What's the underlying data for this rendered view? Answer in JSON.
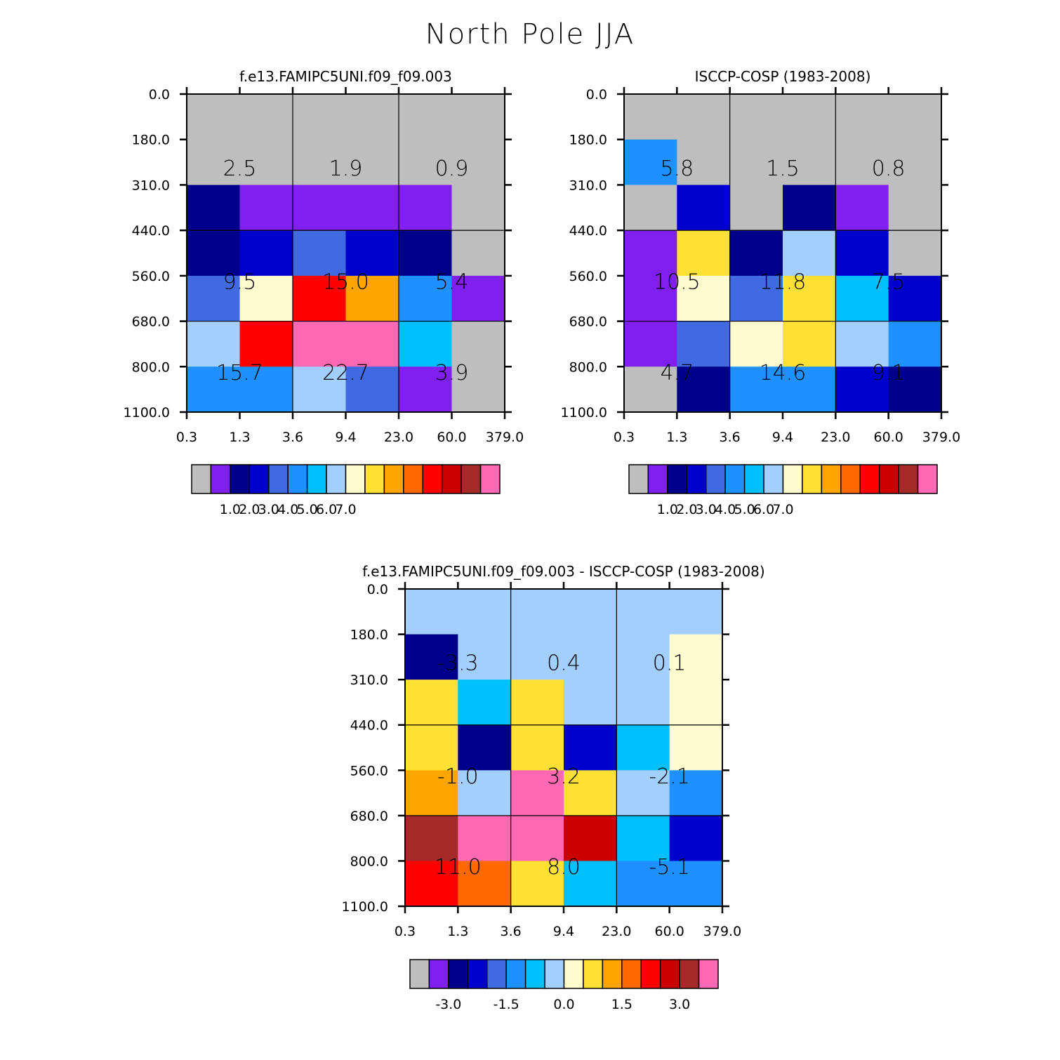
{
  "title": "North Pole JJA",
  "colors": {
    "palette": [
      "#bebebe",
      "#8020f0",
      "#00008b",
      "#0000cd",
      "#4169e1",
      "#1e90ff",
      "#00bfff",
      "#a2cffe",
      "#fffdd0",
      "#ffe135",
      "#ffa500",
      "#ff6a00",
      "#ff0000",
      "#cd0000",
      "#a52a2a",
      "#ff69b4"
    ]
  },
  "chart_data": [
    {
      "type": "heatmap",
      "title": "f.e13.FAMIPC5UNI.f09_f09.003",
      "x_ticks": [
        "0.3",
        "1.3",
        "3.6",
        "9.4",
        "23.0",
        "60.0",
        "379.0"
      ],
      "y_ticks": [
        "0.0",
        "180.0",
        "310.0",
        "440.0",
        "560.0",
        "680.0",
        "800.0",
        "1100.0"
      ],
      "cell_color_index": [
        [
          0,
          0,
          0,
          0,
          0,
          0
        ],
        [
          0,
          0,
          0,
          0,
          0,
          0
        ],
        [
          2,
          1,
          1,
          1,
          1,
          0
        ],
        [
          2,
          3,
          4,
          3,
          2,
          0
        ],
        [
          4,
          8,
          12,
          10,
          5,
          1
        ],
        [
          7,
          12,
          15,
          15,
          6,
          0
        ],
        [
          5,
          5,
          7,
          4,
          1,
          0
        ]
      ],
      "annotations": [
        [
          "2.5",
          "1.9",
          "0.9"
        ],
        [
          "9.5",
          "15.0",
          "5.4"
        ],
        [
          "15.7",
          "22.7",
          "3.9"
        ]
      ],
      "colorbar_labels": [
        "1.0",
        "2.0",
        "3.0",
        "4.0",
        "5.0",
        "6.0",
        "7.0"
      ]
    },
    {
      "type": "heatmap",
      "title": "ISCCP-COSP (1983-2008)",
      "x_ticks": [
        "0.3",
        "1.3",
        "3.6",
        "9.4",
        "23.0",
        "60.0",
        "379.0"
      ],
      "y_ticks": [
        "0.0",
        "180.0",
        "310.0",
        "440.0",
        "560.0",
        "680.0",
        "800.0",
        "1100.0"
      ],
      "cell_color_index": [
        [
          0,
          0,
          0,
          0,
          0,
          0
        ],
        [
          5,
          0,
          0,
          0,
          0,
          0
        ],
        [
          0,
          3,
          0,
          2,
          1,
          0
        ],
        [
          1,
          9,
          2,
          7,
          3,
          0
        ],
        [
          1,
          8,
          4,
          9,
          6,
          3
        ],
        [
          1,
          4,
          8,
          9,
          7,
          5
        ],
        [
          0,
          2,
          5,
          5,
          3,
          2
        ]
      ],
      "annotations": [
        [
          "5.8",
          "1.5",
          "0.8"
        ],
        [
          "10.5",
          "11.8",
          "7.5"
        ],
        [
          "4.7",
          "14.6",
          "9.1"
        ]
      ],
      "colorbar_labels": [
        "1.0",
        "2.0",
        "3.0",
        "4.0",
        "5.0",
        "6.0",
        "7.0"
      ]
    },
    {
      "type": "heatmap",
      "title": "f.e13.FAMIPC5UNI.f09_f09.003 - ISCCP-COSP (1983-2008)",
      "x_ticks": [
        "0.3",
        "1.3",
        "3.6",
        "9.4",
        "23.0",
        "60.0",
        "379.0"
      ],
      "y_ticks": [
        "0.0",
        "180.0",
        "310.0",
        "440.0",
        "560.0",
        "680.0",
        "800.0",
        "1100.0"
      ],
      "cell_color_index": [
        [
          7,
          7,
          7,
          7,
          7,
          7
        ],
        [
          2,
          7,
          7,
          7,
          7,
          8
        ],
        [
          9,
          6,
          9,
          7,
          7,
          8
        ],
        [
          9,
          2,
          9,
          3,
          6,
          8
        ],
        [
          10,
          7,
          15,
          9,
          7,
          5
        ],
        [
          14,
          15,
          15,
          13,
          6,
          3
        ],
        [
          12,
          11,
          9,
          6,
          5,
          5
        ]
      ],
      "annotations": [
        [
          "-3.3",
          "0.4",
          "0.1"
        ],
        [
          "-1.0",
          "3.2",
          "-2.1"
        ],
        [
          "11.0",
          "8.0",
          "-5.1"
        ]
      ],
      "colorbar_labels": [
        "-3.0",
        "-1.5",
        "0.0",
        "1.5",
        "3.0"
      ]
    }
  ]
}
